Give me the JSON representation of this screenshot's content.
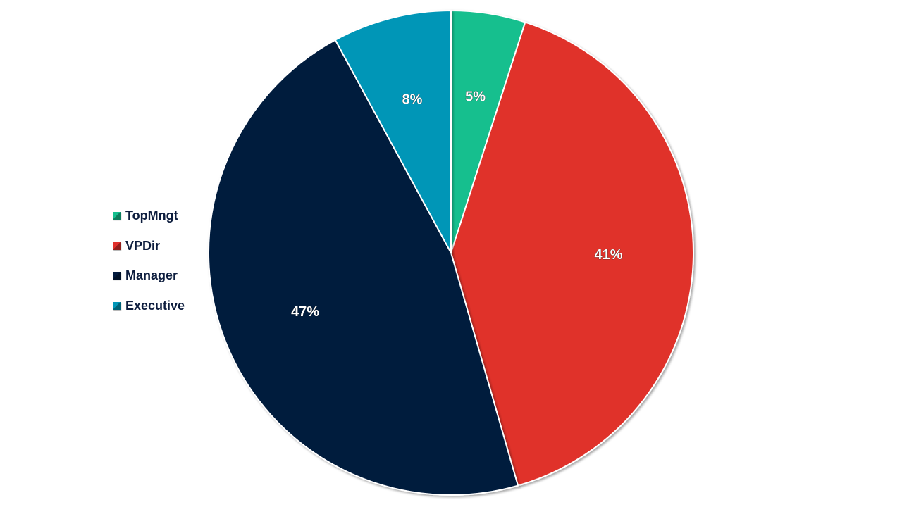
{
  "chart_data": {
    "type": "pie",
    "start_angle": "top, clockwise",
    "slices": [
      {
        "name": "TopMngt",
        "value": 5,
        "label": "5%",
        "color": "#14bf8e"
      },
      {
        "name": "VPDir",
        "value": 41,
        "label": "41%",
        "color": "#e0302c"
      },
      {
        "name": "Manager",
        "value": 47,
        "label": "47%",
        "color": "#021a3e"
      },
      {
        "name": "Executive",
        "value": 8,
        "label": "8%",
        "color": "#0096b7"
      }
    ],
    "legend_placement": "left",
    "legend": [
      {
        "label": "TopMngt",
        "color": "#14bf8e"
      },
      {
        "label": "VPDir",
        "color": "#e0302c"
      },
      {
        "label": "Manager",
        "color": "#021a3e"
      },
      {
        "label": "Executive",
        "color": "#0096b7"
      }
    ]
  }
}
